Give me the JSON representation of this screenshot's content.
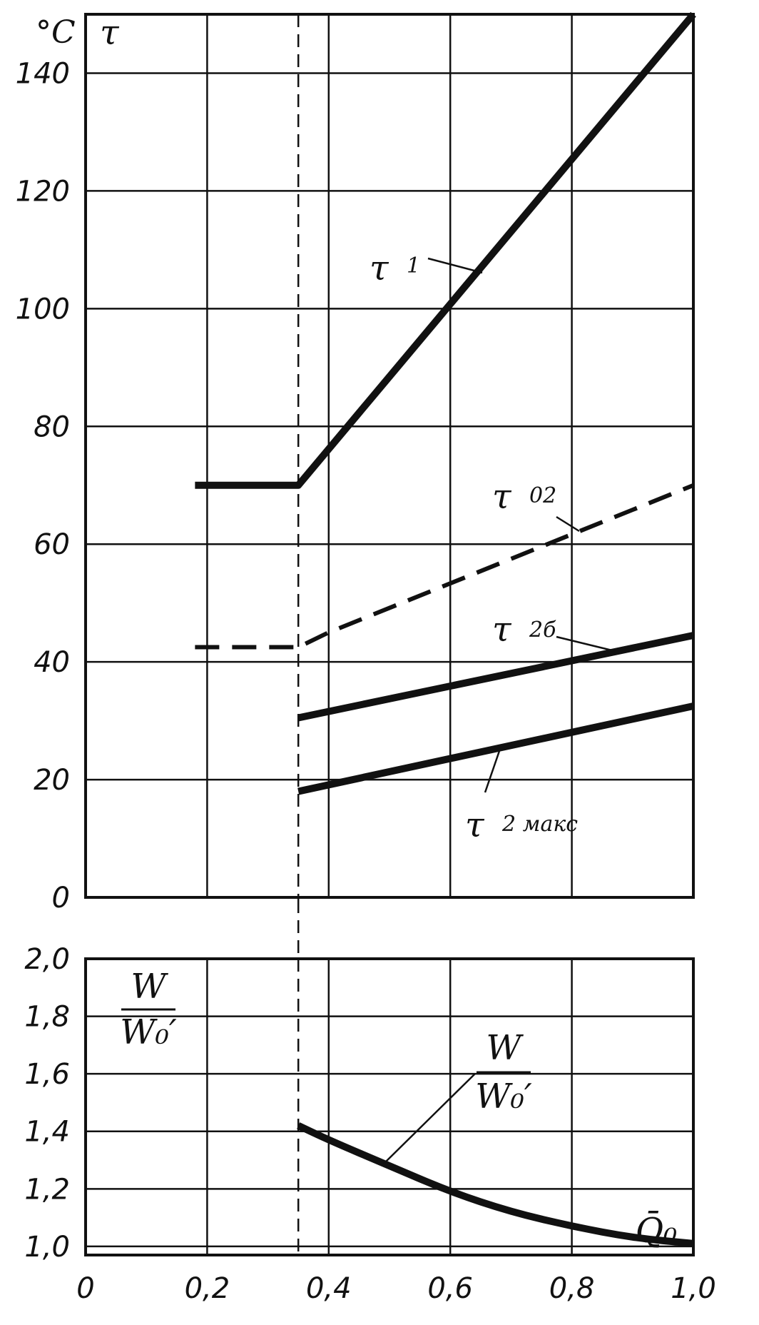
{
  "chart_data": [
    {
      "type": "line",
      "panel": "top",
      "ylabel_unit": "°C",
      "ylabel_symbol": "τ",
      "xlim": [
        0,
        1.0
      ],
      "ylim": [
        0,
        150
      ],
      "yticks": [
        0,
        20,
        40,
        60,
        80,
        100,
        120,
        140
      ],
      "ytick_labels": [
        "0",
        "20",
        "40",
        "60",
        "80",
        "100",
        "120",
        "140"
      ],
      "grid": true,
      "marker_x": 0.35,
      "series": [
        {
          "name": "τ1",
          "label_main": "τ",
          "label_sub": "1",
          "style": "solid",
          "x": [
            0.18,
            0.35,
            0.35,
            1.0
          ],
          "y": [
            70,
            70,
            70,
            150
          ]
        },
        {
          "name": "τ02",
          "label_main": "τ",
          "label_sub": "02",
          "style": "dashed",
          "x": [
            0.18,
            0.35,
            0.4,
            1.0
          ],
          "y": [
            42.5,
            42.5,
            45,
            70
          ]
        },
        {
          "name": "τ2б",
          "label_main": "τ",
          "label_sub": "2б",
          "style": "solid",
          "x": [
            0.35,
            1.0
          ],
          "y": [
            30.5,
            44.5
          ]
        },
        {
          "name": "τ2макс",
          "label_main": "τ",
          "label_sub": "2 макс",
          "style": "solid",
          "x": [
            0.35,
            1.0
          ],
          "y": [
            18,
            32.5
          ]
        }
      ]
    },
    {
      "type": "line",
      "panel": "bottom",
      "ylabel_num": "W",
      "ylabel_den": "W₀′",
      "xlabel": "Q̄₀",
      "xlim": [
        0,
        1.0
      ],
      "ylim": [
        0.97,
        2.0
      ],
      "yticks": [
        1.0,
        1.2,
        1.4,
        1.6,
        1.8,
        2.0
      ],
      "ytick_labels": [
        "1,0",
        "1,2",
        "1,4",
        "1,6",
        "1,8",
        "2,0"
      ],
      "xticks": [
        0,
        0.2,
        0.4,
        0.6,
        0.8,
        1.0
      ],
      "xtick_labels": [
        "0",
        "0,2",
        "0,4",
        "0,6",
        "0,8",
        "1,0"
      ],
      "grid": true,
      "marker_x": 0.35,
      "series": [
        {
          "name": "W/W0′",
          "label_num": "W",
          "label_den": "W₀′",
          "style": "solid",
          "x": [
            0.35,
            0.4,
            0.5,
            0.6,
            0.7,
            0.8,
            0.9,
            1.0
          ],
          "y": [
            1.42,
            1.37,
            1.28,
            1.19,
            1.12,
            1.07,
            1.03,
            1.01
          ]
        }
      ]
    }
  ]
}
